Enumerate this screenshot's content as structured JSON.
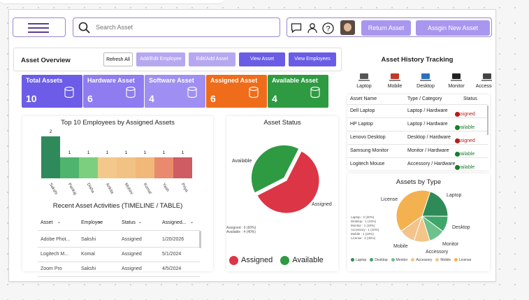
{
  "header": {
    "search_placeholder": "Search Asset",
    "return_asset": "Return Asset",
    "assign_new_asset": "Assgin New Asset"
  },
  "overview": {
    "title": "Asset Overview",
    "buttons": [
      "Refresh All",
      "Add/Edit Employee",
      "Edit/Add Asset",
      "View Asset",
      "View Employees"
    ]
  },
  "kpis": [
    {
      "label": "Total Assets",
      "value": "10",
      "color": "#6c5ce7"
    },
    {
      "label": "Hardware Asset",
      "value": "6",
      "color": "#8e7cf0"
    },
    {
      "label": "Software Asset",
      "value": "4",
      "color": "#a08ff2"
    },
    {
      "label": "Assigned Asset",
      "value": "6",
      "color": "#ef6c1a"
    },
    {
      "label": "Available Asset",
      "value": "4",
      "color": "#2e9a42"
    }
  ],
  "top_employees": {
    "title": "Top 10 Employees by Assigned Assets",
    "chart_data": {
      "type": "bar",
      "categories": [
        "Sakshi",
        "Pankaj",
        "Disha",
        "Ankita",
        "Mohini",
        "Komal",
        "Yash",
        "Priya"
      ],
      "values": [
        2,
        1,
        1,
        1,
        1,
        1,
        1,
        1
      ],
      "colors": [
        "#2f8a5b",
        "#4fb46e",
        "#7ccf7e",
        "#f3c98b",
        "#f2c285",
        "#f0b879",
        "#e98a6e",
        "#cf5b63"
      ]
    }
  },
  "activities": {
    "title": "Recent Asset Activities (TIMELINE / TABLE)",
    "headers": [
      "Asset",
      "Employee",
      "Status",
      "Assigned..."
    ],
    "rows": [
      [
        "Adobe Phot...",
        "Sakshi",
        "Assigned",
        "1/20/2026"
      ],
      [
        "Logitech M...",
        "Komal",
        "Assigned",
        "5/1/2024"
      ],
      [
        "Zoom Pro",
        "Sakshi",
        "Assigned",
        "4/5/2024"
      ]
    ]
  },
  "asset_status": {
    "title": "Asset Status",
    "chart_data": {
      "type": "pie",
      "categories": [
        "Assigned",
        "Available"
      ],
      "values": [
        6,
        4
      ],
      "colors": [
        "#dc3545",
        "#2e9a42"
      ],
      "legend": [
        "Assigned",
        "Available"
      ],
      "notes": [
        "Assigned : 6 (60%)",
        "Available : 4 (40%)"
      ]
    }
  },
  "history": {
    "title": "Asset History Tracking",
    "categories": [
      "Laptop",
      "Mobile",
      "Desktop",
      "Monitor",
      "Accessory"
    ],
    "headers": [
      "Asset Name",
      "Type / Category",
      "Status"
    ],
    "rows": [
      {
        "name": "Dell Laptop",
        "type": "Laptop / Hardware",
        "status": "Assigned",
        "color": "#b71c1c"
      },
      {
        "name": "HP Laptop",
        "type": "Laptop / Hardware",
        "status": "Available",
        "color": "#1b7d2e"
      },
      {
        "name": "Lenovo Desktop",
        "type": "Desktop / Hardware",
        "status": "Assigned",
        "color": "#b71c1c"
      },
      {
        "name": "Samsung Monitor",
        "type": "Monitor / Hardware",
        "status": "Available",
        "color": "#1b7d2e"
      },
      {
        "name": "Logitech Mouse",
        "type": "Accessory / Hardware",
        "status": "Available",
        "color": "#1b7d2e"
      }
    ]
  },
  "assets_by_type": {
    "title": "Assets by Type",
    "chart_data": {
      "type": "pie",
      "categories": [
        "Laptop",
        "Desktop",
        "Monitor",
        "Accessory",
        "Mobile",
        "License"
      ],
      "values": [
        2,
        1,
        1,
        1,
        1,
        4
      ],
      "colors": [
        "#2e8b57",
        "#3fa66a",
        "#6cc28a",
        "#f4c488",
        "#f2c38a",
        "#f3b24f"
      ],
      "notes": [
        "Laptop : 2 (20%)",
        "Desktop : 1 (10%)",
        "Monitor : 1 (10%)",
        "Accessory : 1 (10%)",
        "Mobile : 1 (10%)",
        "License : 4 (40%)"
      ]
    }
  }
}
